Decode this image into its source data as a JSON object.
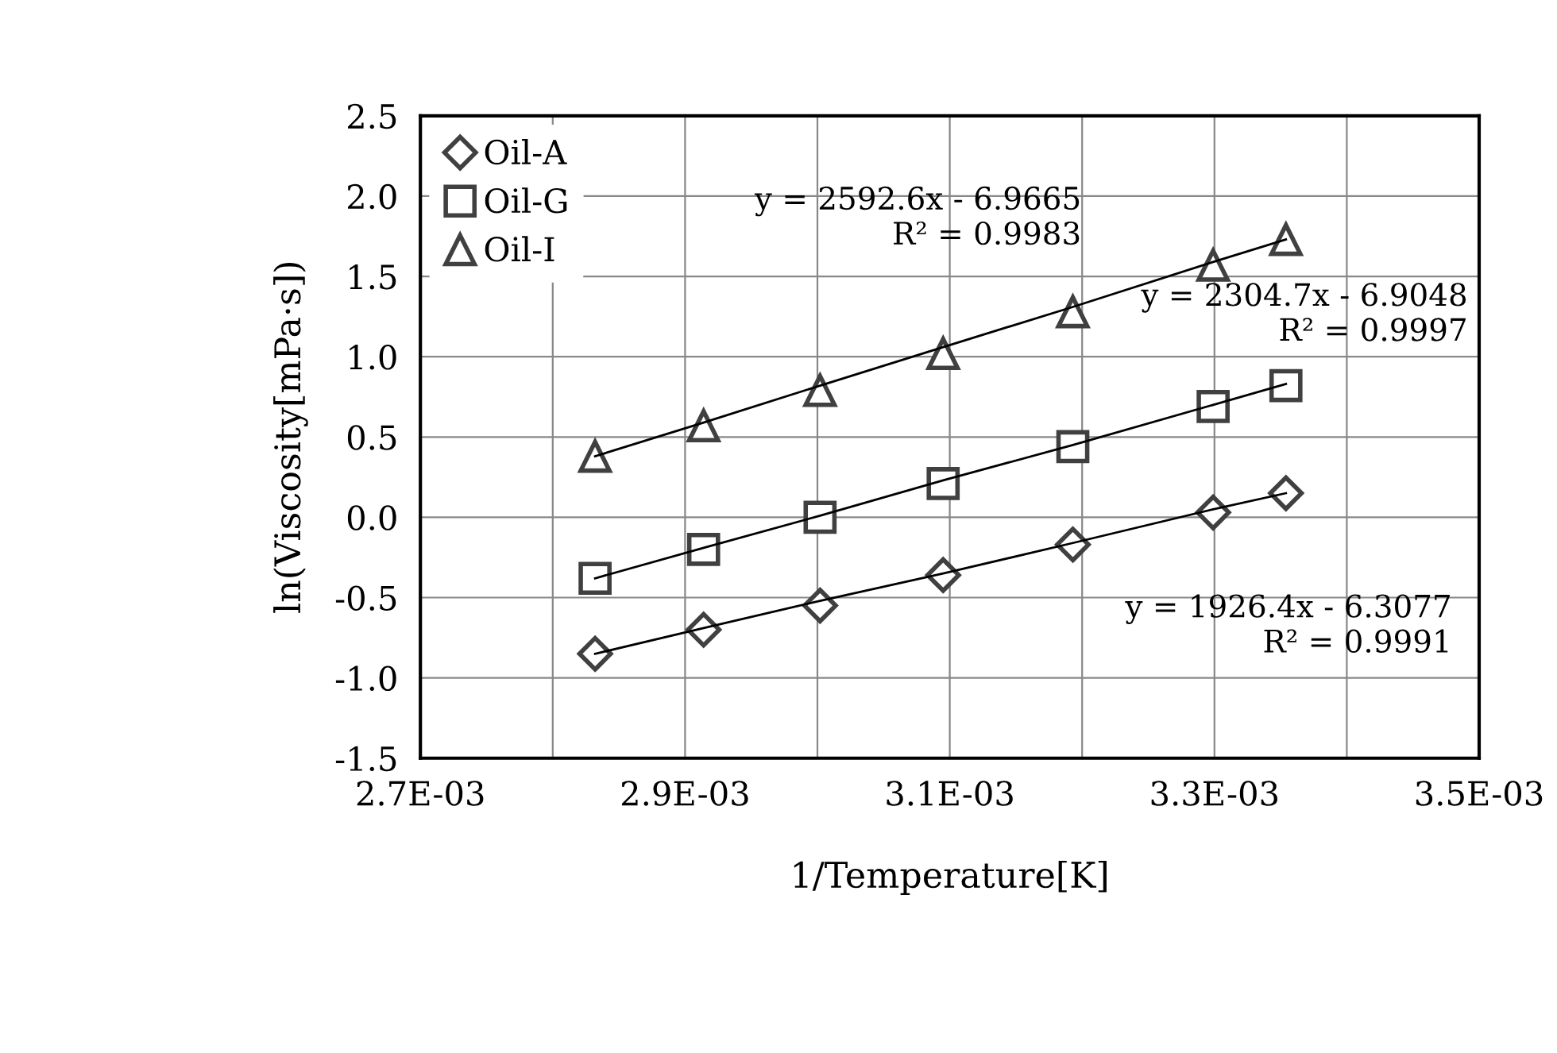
{
  "chart_data": {
    "type": "scatter",
    "xlabel": "1/Temperature[K]",
    "ylabel": "ln(Viscosity[mPa·s])",
    "x": [
      0.002832,
      0.002914,
      0.003002,
      0.003095,
      0.003193,
      0.003299,
      0.003354
    ],
    "series": [
      {
        "name": "Oil-A",
        "color": "#404040",
        "marker": "diamond",
        "values": [
          -0.85,
          -0.7,
          -0.55,
          -0.36,
          -0.17,
          0.03,
          0.15
        ]
      },
      {
        "name": "Oil-G",
        "color": "#404040",
        "marker": "square",
        "values": [
          -0.38,
          -0.2,
          0.0,
          0.21,
          0.44,
          0.69,
          0.82
        ]
      },
      {
        "name": "Oil-I",
        "color": "#404040",
        "marker": "triangle",
        "values": [
          0.38,
          0.57,
          0.79,
          1.02,
          1.28,
          1.57,
          1.73
        ]
      },
      {
        "type": "line",
        "color": "#000000",
        "marker": "none",
        "values": [
          -0.85,
          -0.69,
          -0.52,
          -0.35,
          -0.16,
          0.05,
          0.15
        ]
      },
      {
        "type": "line",
        "color": "#000000",
        "marker": "none",
        "values": [
          -0.38,
          -0.19,
          0.01,
          0.23,
          0.45,
          0.7,
          0.83
        ]
      },
      {
        "type": "line",
        "color": "#000000",
        "marker": "none",
        "values": [
          0.38,
          0.59,
          0.82,
          1.06,
          1.31,
          1.59,
          1.73
        ]
      }
    ],
    "annotations": [
      "y = 2592.6x - 6.9665\nR² = 0.9983",
      "y = 2304.7x - 6.9048\nR² = 0.9997",
      "y = 1926.4x - 6.3077\nR² = 0.9991"
    ],
    "xlim": [
      0.0027,
      0.0035
    ],
    "xticks": [
      {
        "value": 0.0027,
        "label": "2.7E-03"
      },
      {
        "value": 0.0028,
        "label": null
      },
      {
        "value": 0.0029,
        "label": "2.9E-03"
      },
      {
        "value": 0.003,
        "label": null
      },
      {
        "value": 0.0031,
        "label": "3.1E-03"
      },
      {
        "value": 0.0032,
        "label": null
      },
      {
        "value": 0.0033,
        "label": "3.3E-03"
      },
      {
        "value": 0.0034,
        "label": null
      },
      {
        "value": 0.0035,
        "label": "3.5E-03"
      }
    ],
    "ylim": [
      -1.5,
      2.5
    ],
    "yticks": [
      {
        "value": -1.5,
        "label": "-1.5"
      },
      {
        "value": -1.0,
        "label": "-1.0"
      },
      {
        "value": -0.5,
        "label": "-0.5"
      },
      {
        "value": 0.0,
        "label": "0.0"
      },
      {
        "value": 0.5,
        "label": "0.5"
      },
      {
        "value": 1.0,
        "label": "1.0"
      },
      {
        "value": 1.5,
        "label": "1.5"
      },
      {
        "value": 2.0,
        "label": "2.0"
      },
      {
        "value": 2.5,
        "label": "2.5"
      }
    ],
    "grid": true,
    "legend": "top left"
  }
}
